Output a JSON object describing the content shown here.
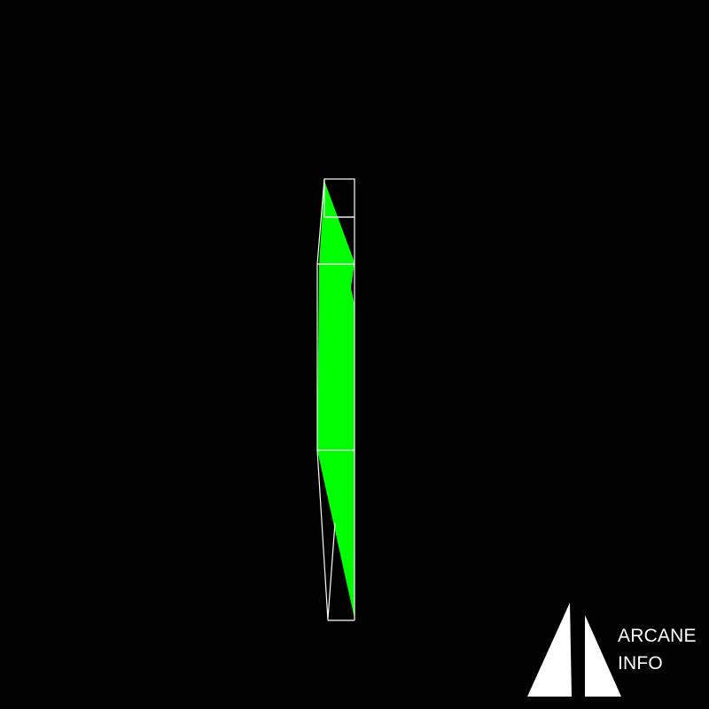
{
  "diagram": {
    "background_color": "#000000",
    "outline_color": "#ffffff",
    "fill_color": "#00ff00"
  },
  "logo": {
    "line1": "ARCANE",
    "line2": "INFO",
    "color": "#ffffff"
  }
}
